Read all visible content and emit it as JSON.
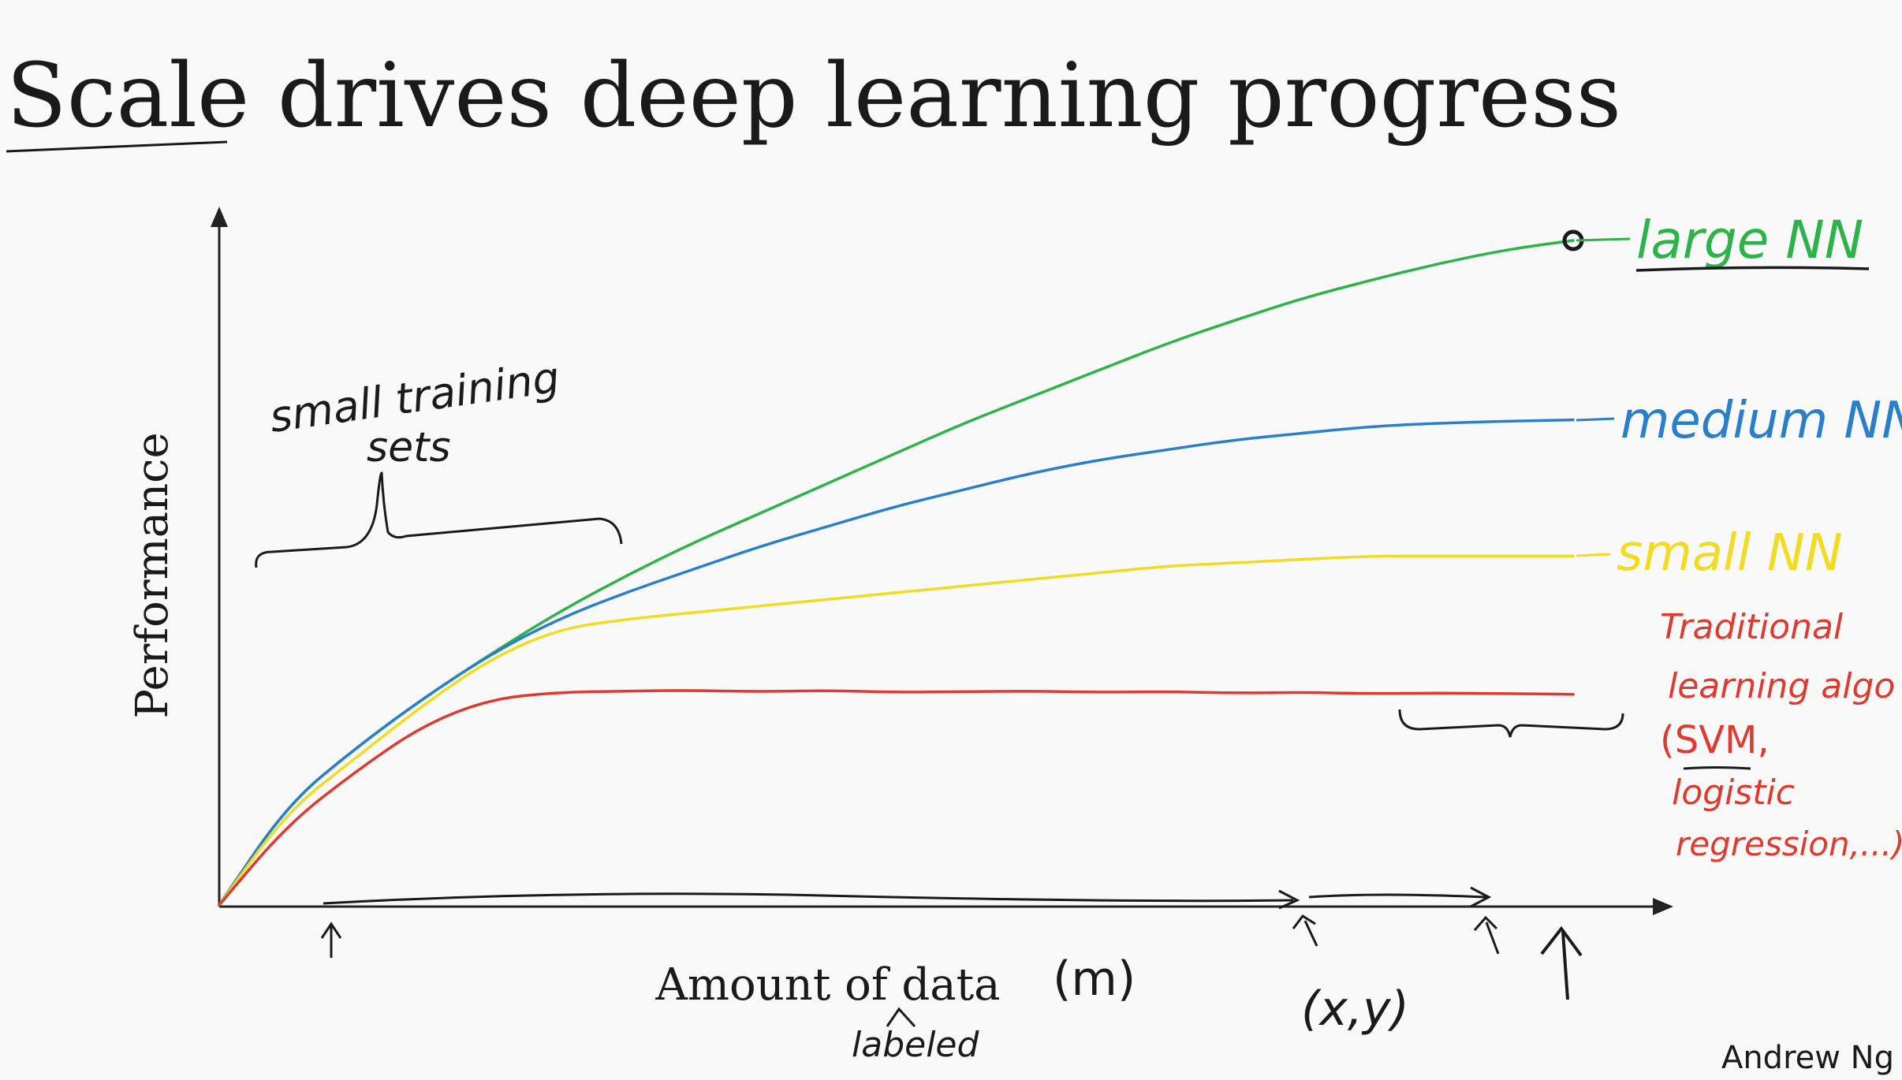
{
  "title": "Scale drives deep learning progress",
  "title_underlined_word": "Scale",
  "title_rest": " drives deep learning progress",
  "author": "Andrew Ng",
  "colors": {
    "background": "#f9f9f9",
    "ink": "#1a1a1a",
    "axis": "#222222",
    "large_nn": "#2db34a",
    "medium_nn": "#2a7fc9",
    "small_nn": "#f2dc22",
    "traditional": "#df3a2f"
  },
  "annotations": {
    "small_training_line1": "small training",
    "small_training_line2": "sets",
    "m_label": "(m)",
    "xy_label": "(x,y)",
    "labeled": "labeled",
    "traditional_lines": [
      "Traditional",
      "learning algo",
      "(SVM,",
      "logistic",
      "regression,...)"
    ]
  },
  "chart_data": {
    "type": "line",
    "title": "Scale drives deep learning progress",
    "xlabel": "Amount of data",
    "ylabel": "Performance",
    "xlim": [
      0,
      100
    ],
    "ylim": [
      0,
      100
    ],
    "grid": false,
    "legend": "right, labels at line ends",
    "x": [
      0,
      5,
      10,
      15,
      20,
      25,
      30,
      35,
      40,
      45,
      50,
      55,
      60,
      65,
      70,
      75,
      80,
      85,
      90,
      95,
      100
    ],
    "series": [
      {
        "name": "large NN",
        "color": "#2db34a",
        "values": [
          0,
          15,
          23.5,
          31,
          37.7,
          44,
          49.5,
          54.5,
          59,
          63.5,
          68,
          72.5,
          76.5,
          80.5,
          84.5,
          88,
          91.3,
          94,
          96.5,
          98.6,
          100
        ]
      },
      {
        "name": "medium NN",
        "color": "#2a7fc9",
        "values": [
          0,
          15,
          23.5,
          31,
          37.7,
          43,
          47,
          50.5,
          54,
          57,
          60,
          62.5,
          65,
          67,
          68.5,
          70,
          71,
          72,
          72.5,
          72.8,
          73
        ]
      },
      {
        "name": "small NN",
        "color": "#f2dc22",
        "values": [
          0,
          14,
          22,
          30,
          37,
          41.5,
          43,
          44,
          45,
          46,
          47,
          48,
          49,
          50,
          51,
          51.5,
          52,
          52.5,
          52.5,
          52.5,
          52.5
        ]
      },
      {
        "name": "Traditional learning algo (SVM, logistic regression,...)",
        "color": "#df3a2f",
        "values": [
          0,
          12,
          20,
          27,
          31,
          32,
          32.2,
          32.3,
          32.1,
          32.3,
          32,
          32.1,
          32.2,
          32,
          32.1,
          31.9,
          32,
          31.8,
          31.9,
          31.8,
          31.7
        ]
      }
    ],
    "marker": {
      "series": "large NN",
      "x": 100,
      "y": 100
    }
  }
}
